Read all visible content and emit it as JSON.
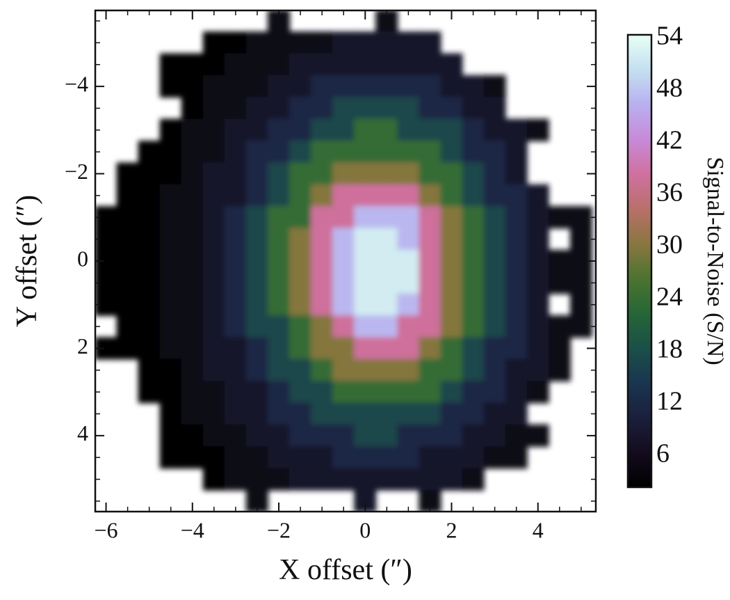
{
  "chart_data": {
    "type": "heatmap",
    "x_label": "X offset (″)",
    "y_label": "Y offset (″)",
    "colorbar_label": "Signal-to-Noise (S/N)",
    "x": [
      -6,
      -5.5,
      -5,
      -4.5,
      -4,
      -3.5,
      -3,
      -2.5,
      -2,
      -1.5,
      -1,
      -0.5,
      0,
      0.5,
      1,
      1.5,
      2,
      2.5,
      3,
      3.5,
      4,
      4.5,
      5
    ],
    "y": [
      -5.5,
      -5,
      -4.5,
      -4,
      -3.5,
      -3,
      -2.5,
      -2,
      -1.5,
      -1,
      -0.5,
      0,
      0.5,
      1,
      1.5,
      2,
      2.5,
      3,
      3.5,
      4,
      4.5,
      5,
      5.5
    ],
    "z": [
      [
        null,
        null,
        null,
        null,
        null,
        null,
        null,
        null,
        5,
        null,
        null,
        null,
        null,
        5,
        null,
        null,
        null,
        null,
        null,
        null,
        null,
        null,
        null
      ],
      [
        null,
        null,
        null,
        null,
        null,
        3,
        3,
        5,
        5,
        5,
        5,
        8,
        8,
        8,
        8,
        8,
        null,
        null,
        null,
        null,
        null,
        null,
        null
      ],
      [
        null,
        null,
        null,
        3,
        3,
        3,
        5,
        5,
        5,
        8,
        8,
        8,
        8,
        8,
        8,
        8,
        8,
        null,
        null,
        null,
        null,
        null,
        null
      ],
      [
        null,
        null,
        null,
        3,
        3,
        5,
        5,
        5,
        8,
        8,
        12,
        12,
        12,
        12,
        12,
        12,
        8,
        8,
        5,
        null,
        null,
        null,
        null
      ],
      [
        null,
        null,
        null,
        null,
        3,
        5,
        5,
        8,
        8,
        12,
        12,
        17,
        17,
        17,
        17,
        12,
        12,
        8,
        8,
        null,
        null,
        null,
        null
      ],
      [
        null,
        null,
        null,
        3,
        5,
        5,
        8,
        8,
        12,
        12,
        17,
        17,
        24,
        24,
        17,
        17,
        17,
        12,
        8,
        8,
        5,
        null,
        null
      ],
      [
        null,
        null,
        3,
        3,
        5,
        5,
        8,
        12,
        12,
        17,
        24,
        24,
        24,
        24,
        24,
        24,
        17,
        12,
        12,
        8,
        null,
        null,
        null
      ],
      [
        null,
        3,
        3,
        3,
        5,
        8,
        8,
        12,
        17,
        24,
        24,
        30,
        30,
        30,
        30,
        24,
        24,
        17,
        12,
        8,
        null,
        null,
        null
      ],
      [
        null,
        3,
        3,
        5,
        5,
        8,
        8,
        12,
        17,
        24,
        30,
        38,
        38,
        38,
        38,
        30,
        24,
        17,
        12,
        12,
        8,
        null,
        null
      ],
      [
        3,
        3,
        3,
        5,
        5,
        8,
        12,
        17,
        24,
        24,
        38,
        38,
        47,
        47,
        47,
        38,
        30,
        24,
        17,
        12,
        8,
        5,
        5
      ],
      [
        3,
        3,
        3,
        5,
        5,
        8,
        12,
        17,
        24,
        30,
        38,
        47,
        52,
        52,
        47,
        38,
        30,
        24,
        17,
        12,
        8,
        null,
        5
      ],
      [
        3,
        3,
        3,
        5,
        5,
        8,
        12,
        17,
        24,
        30,
        38,
        47,
        52,
        52,
        52,
        38,
        30,
        24,
        17,
        12,
        8,
        5,
        5
      ],
      [
        3,
        3,
        3,
        5,
        5,
        8,
        12,
        17,
        24,
        30,
        38,
        47,
        52,
        52,
        52,
        38,
        30,
        24,
        17,
        12,
        8,
        5,
        5
      ],
      [
        3,
        3,
        3,
        5,
        5,
        8,
        12,
        17,
        24,
        30,
        38,
        47,
        52,
        52,
        47,
        38,
        30,
        24,
        17,
        12,
        8,
        null,
        5
      ],
      [
        null,
        3,
        3,
        5,
        5,
        8,
        12,
        17,
        17,
        24,
        30,
        38,
        47,
        47,
        38,
        38,
        30,
        24,
        17,
        12,
        8,
        5,
        5
      ],
      [
        3,
        3,
        3,
        5,
        5,
        8,
        8,
        12,
        17,
        24,
        30,
        30,
        38,
        38,
        38,
        30,
        24,
        17,
        12,
        12,
        8,
        5,
        null
      ],
      [
        null,
        null,
        3,
        3,
        5,
        8,
        8,
        12,
        17,
        17,
        24,
        30,
        30,
        30,
        30,
        24,
        24,
        17,
        12,
        8,
        8,
        5,
        null
      ],
      [
        null,
        null,
        3,
        3,
        5,
        5,
        8,
        8,
        12,
        17,
        17,
        24,
        24,
        24,
        24,
        24,
        17,
        12,
        12,
        8,
        5,
        null,
        null
      ],
      [
        null,
        null,
        null,
        3,
        5,
        5,
        8,
        8,
        12,
        12,
        17,
        17,
        17,
        17,
        17,
        17,
        12,
        12,
        8,
        8,
        null,
        null,
        null
      ],
      [
        null,
        null,
        null,
        3,
        3,
        5,
        5,
        8,
        8,
        12,
        12,
        12,
        17,
        17,
        12,
        12,
        12,
        8,
        8,
        5,
        5,
        null,
        null
      ],
      [
        null,
        null,
        null,
        3,
        3,
        3,
        5,
        5,
        8,
        8,
        8,
        12,
        12,
        12,
        12,
        8,
        8,
        8,
        5,
        5,
        null,
        null,
        null
      ],
      [
        null,
        null,
        null,
        null,
        null,
        3,
        5,
        5,
        5,
        8,
        8,
        8,
        8,
        8,
        8,
        8,
        8,
        5,
        null,
        null,
        null,
        null,
        null
      ],
      [
        null,
        null,
        null,
        null,
        null,
        null,
        null,
        5,
        null,
        null,
        null,
        null,
        8,
        null,
        null,
        5,
        null,
        null,
        null,
        null,
        null,
        null,
        null
      ]
    ],
    "xlim": [
      -6.25,
      5.34
    ],
    "ylim": [
      -5.74,
      5.74
    ],
    "y_inverted": true,
    "xticks": [
      {
        "value": -6,
        "label": "−6"
      },
      {
        "value": -4,
        "label": "−4"
      },
      {
        "value": -2,
        "label": "−2"
      },
      0,
      2,
      4
    ],
    "yticks": [
      {
        "value": -4,
        "label": "−4"
      },
      {
        "value": -2,
        "label": "−2"
      },
      0,
      2,
      4
    ],
    "xminorticks": [
      -5.5,
      -5,
      -4.5,
      -3.5,
      -3,
      -2.5,
      -1.5,
      -1,
      -0.5,
      0.5,
      1,
      1.5,
      2.5,
      3,
      3.5,
      4.5,
      5
    ],
    "yminorticks": [
      -5.5,
      -5,
      -4.5,
      -3.5,
      -3,
      -2.5,
      -1.5,
      -1,
      -0.5,
      0.5,
      1,
      1.5,
      2.5,
      3,
      3.5,
      4.5,
      5,
      5.5
    ],
    "clim": [
      2.4,
      54.4
    ],
    "cticks": [
      6,
      12,
      18,
      24,
      30,
      36,
      42,
      48,
      54
    ],
    "colormap": [
      "#000000",
      "#140c1e",
      "#1b1f3c",
      "#1a3550",
      "#1a5048",
      "#266636",
      "#4c7430",
      "#8a7640",
      "#b8706a",
      "#d070a0",
      "#c88ad8",
      "#b8b0f0",
      "#c4e0f0",
      "#e8fff4"
    ]
  }
}
